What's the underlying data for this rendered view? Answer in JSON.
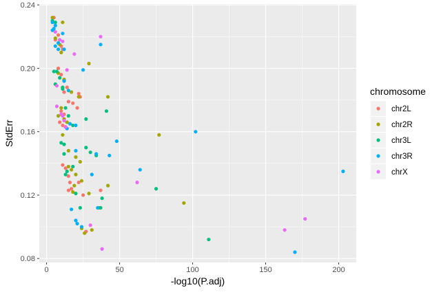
{
  "chart_data": {
    "type": "scatter",
    "xlabel": "-log10(P.adj)",
    "ylabel": "StdErr",
    "xlim": [
      -5,
      212
    ],
    "ylim": [
      0.0775,
      0.2405
    ],
    "xticks": [
      0,
      50,
      100,
      150,
      200
    ],
    "xtick_labels": [
      "0",
      "50",
      "100",
      "150",
      "200"
    ],
    "yticks": [
      0.08,
      0.12,
      0.16,
      0.2,
      0.24
    ],
    "ytick_labels": [
      "0.08",
      "0.12",
      "0.16",
      "0.20",
      "0.24"
    ],
    "grid": true,
    "legend": {
      "title": "chromosome",
      "position": "right"
    },
    "series": [
      {
        "name": "chr2L",
        "color": "#F8766D",
        "points": [
          [
            5,
            0.232
          ],
          [
            6,
            0.218
          ],
          [
            8,
            0.221
          ],
          [
            10,
            0.214
          ],
          [
            11,
            0.212
          ],
          [
            8,
            0.2
          ],
          [
            10,
            0.196
          ],
          [
            12,
            0.192
          ],
          [
            14,
            0.188
          ],
          [
            12,
            0.185
          ],
          [
            22,
            0.184
          ],
          [
            23,
            0.182
          ],
          [
            15,
            0.179
          ],
          [
            18,
            0.178
          ],
          [
            21,
            0.175
          ],
          [
            10,
            0.173
          ],
          [
            12,
            0.171
          ],
          [
            9,
            0.166
          ],
          [
            11,
            0.164
          ],
          [
            13,
            0.163
          ],
          [
            11,
            0.139
          ],
          [
            13,
            0.137
          ],
          [
            15,
            0.132
          ],
          [
            16,
            0.128
          ],
          [
            17,
            0.124
          ],
          [
            15,
            0.123
          ],
          [
            22,
            0.128
          ],
          [
            25,
            0.12
          ],
          [
            37,
            0.123
          ],
          [
            27,
            0.097
          ]
        ]
      },
      {
        "name": "chr2R",
        "color": "#A3A500",
        "points": [
          [
            4,
            0.232
          ],
          [
            6,
            0.219
          ],
          [
            9,
            0.215
          ],
          [
            11,
            0.229
          ],
          [
            10,
            0.21
          ],
          [
            8,
            0.197
          ],
          [
            12,
            0.193
          ],
          [
            17,
            0.185
          ],
          [
            22,
            0.182
          ],
          [
            29,
            0.203
          ],
          [
            42,
            0.182
          ],
          [
            10,
            0.175
          ],
          [
            8,
            0.17
          ],
          [
            12,
            0.168
          ],
          [
            14,
            0.166
          ],
          [
            11,
            0.158
          ],
          [
            15,
            0.148
          ],
          [
            20,
            0.144
          ],
          [
            23,
            0.141
          ],
          [
            15,
            0.138
          ],
          [
            17,
            0.136
          ],
          [
            20,
            0.133
          ],
          [
            24,
            0.129
          ],
          [
            19,
            0.126
          ],
          [
            18,
            0.122
          ],
          [
            29,
            0.121
          ],
          [
            42,
            0.126
          ],
          [
            36,
            0.112
          ],
          [
            24,
            0.099
          ],
          [
            26,
            0.096
          ],
          [
            31,
            0.098
          ],
          [
            77,
            0.158
          ],
          [
            94,
            0.115
          ]
        ]
      },
      {
        "name": "chr3L",
        "color": "#00BF7D",
        "points": [
          [
            4,
            0.23
          ],
          [
            6,
            0.229
          ],
          [
            5,
            0.198
          ],
          [
            7,
            0.198
          ],
          [
            9,
            0.194
          ],
          [
            6,
            0.19
          ],
          [
            11,
            0.188
          ],
          [
            11,
            0.187
          ],
          [
            13,
            0.175
          ],
          [
            15,
            0.17
          ],
          [
            18,
            0.164
          ],
          [
            10,
            0.153
          ],
          [
            12,
            0.152
          ],
          [
            12,
            0.146
          ],
          [
            14,
            0.135
          ],
          [
            13,
            0.133
          ],
          [
            18,
            0.138
          ],
          [
            20,
            0.121
          ],
          [
            27,
            0.168
          ],
          [
            27,
            0.15
          ],
          [
            30,
            0.147
          ],
          [
            34,
            0.145
          ],
          [
            41,
            0.173
          ],
          [
            38,
            0.118
          ],
          [
            37,
            0.112
          ],
          [
            23,
            0.112
          ],
          [
            75,
            0.124
          ],
          [
            111,
            0.092
          ]
        ]
      },
      {
        "name": "chr3R",
        "color": "#00B0F6",
        "points": [
          [
            4,
            0.229
          ],
          [
            5,
            0.225
          ],
          [
            4,
            0.224
          ],
          [
            6,
            0.227
          ],
          [
            8,
            0.216
          ],
          [
            11,
            0.222
          ],
          [
            6,
            0.214
          ],
          [
            8,
            0.212
          ],
          [
            12,
            0.212
          ],
          [
            12,
            0.192
          ],
          [
            15,
            0.186
          ],
          [
            16,
            0.165
          ],
          [
            20,
            0.164
          ],
          [
            14,
            0.162
          ],
          [
            20,
            0.148
          ],
          [
            25,
            0.199
          ],
          [
            37,
            0.215
          ],
          [
            34,
            0.146
          ],
          [
            43,
            0.145
          ],
          [
            48,
            0.154
          ],
          [
            64,
            0.136
          ],
          [
            31,
            0.133
          ],
          [
            35,
            0.112
          ],
          [
            17,
            0.111
          ],
          [
            20,
            0.104
          ],
          [
            21,
            0.102
          ],
          [
            24,
            0.1
          ],
          [
            102,
            0.16
          ],
          [
            170,
            0.084
          ],
          [
            203,
            0.135
          ]
        ]
      },
      {
        "name": "chrX",
        "color": "#E76BF3",
        "points": [
          [
            6,
            0.223
          ],
          [
            9,
            0.218
          ],
          [
            11,
            0.217
          ],
          [
            19,
            0.209
          ],
          [
            14,
            0.199
          ],
          [
            7,
            0.189
          ],
          [
            7,
            0.176
          ],
          [
            10,
            0.171
          ],
          [
            11,
            0.17
          ],
          [
            12,
            0.167
          ],
          [
            13,
            0.163
          ],
          [
            30,
            0.101
          ],
          [
            38,
            0.086
          ],
          [
            37,
            0.22
          ],
          [
            62,
            0.128
          ],
          [
            163,
            0.098
          ],
          [
            177,
            0.105
          ]
        ]
      }
    ]
  }
}
